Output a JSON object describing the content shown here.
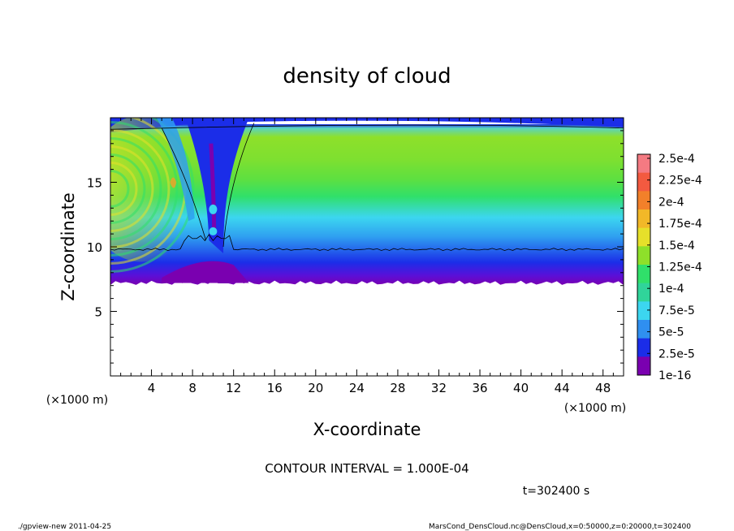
{
  "chart_data": {
    "type": "heatmap",
    "title": "density of cloud",
    "xlabel": "X-coordinate",
    "ylabel": "Z-coordinate",
    "x_unit_label": "(×1000 m)",
    "y_unit_label": "(×1000 m)",
    "xlim": [
      0,
      50
    ],
    "ylim": [
      0,
      20
    ],
    "x_ticks": [
      4,
      8,
      12,
      16,
      20,
      24,
      28,
      32,
      36,
      40,
      44,
      48
    ],
    "y_ticks": [
      5,
      10,
      15
    ],
    "colorbar": {
      "labels": [
        "2.5e-4",
        "2.25e-4",
        "2e-4",
        "1.75e-4",
        "1.5e-4",
        "1.25e-4",
        "1e-4",
        "7.5e-5",
        "5e-5",
        "2.5e-5",
        "1e-16"
      ],
      "values": [
        0.00025,
        0.000225,
        0.0002,
        0.000175,
        0.00015,
        0.000125,
        0.0001,
        7.5e-05,
        5e-05,
        2.5e-05,
        1e-16
      ]
    },
    "contour_interval_text": "CONTOUR INTERVAL = 1.000E-04",
    "contour_level": 0.0001,
    "cloud_layer": {
      "base_z": 7.2,
      "contour_z": 9.8,
      "top_z": 19.5
    },
    "time_label": "t=302400 s",
    "footer_left": "./gpview-new  2011-04-25",
    "footer_right": "MarsCond_DensCloud.nc@DensCloud,x=0:50000,z=0:20000,t=302400",
    "colors": {
      "purple": "#7a00b0",
      "blue": "#1b2de8",
      "cyan": "#3cd6f0",
      "green": "#30e06a",
      "lime": "#8ee02a",
      "yellow": "#e6e02a",
      "orange": "#f2a028"
    }
  }
}
